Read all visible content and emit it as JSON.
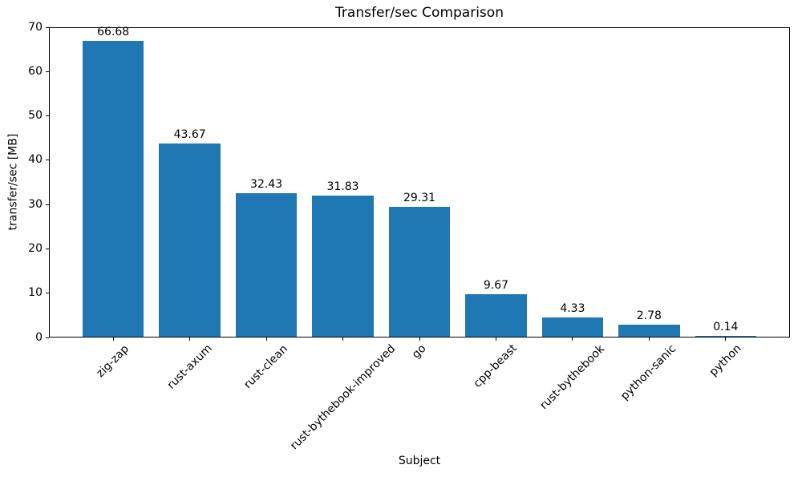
{
  "chart_data": {
    "type": "bar",
    "title": "Transfer/sec Comparison",
    "xlabel": "Subject",
    "ylabel": "transfer/sec [MB]",
    "categories": [
      "zig-zap",
      "rust-axum",
      "rust-clean",
      "rust-bythebook-improved",
      "go",
      "cpp-beast",
      "rust-bythebook",
      "python-sanic",
      "python"
    ],
    "values": [
      66.68,
      43.67,
      32.43,
      31.83,
      29.31,
      9.67,
      4.33,
      2.78,
      0.14
    ],
    "value_labels": [
      "66.68",
      "43.67",
      "32.43",
      "31.83",
      "29.31",
      "9.67",
      "4.33",
      "2.78",
      "0.14"
    ],
    "ylim": [
      0,
      70
    ],
    "yticks": [
      0,
      10,
      20,
      30,
      40,
      50,
      60,
      70
    ],
    "bar_color": "#1f77b4",
    "grid": false,
    "legend": null,
    "x_tick_rotation_deg": 45,
    "background_color": "#ffffff",
    "text_color": "#000000"
  }
}
